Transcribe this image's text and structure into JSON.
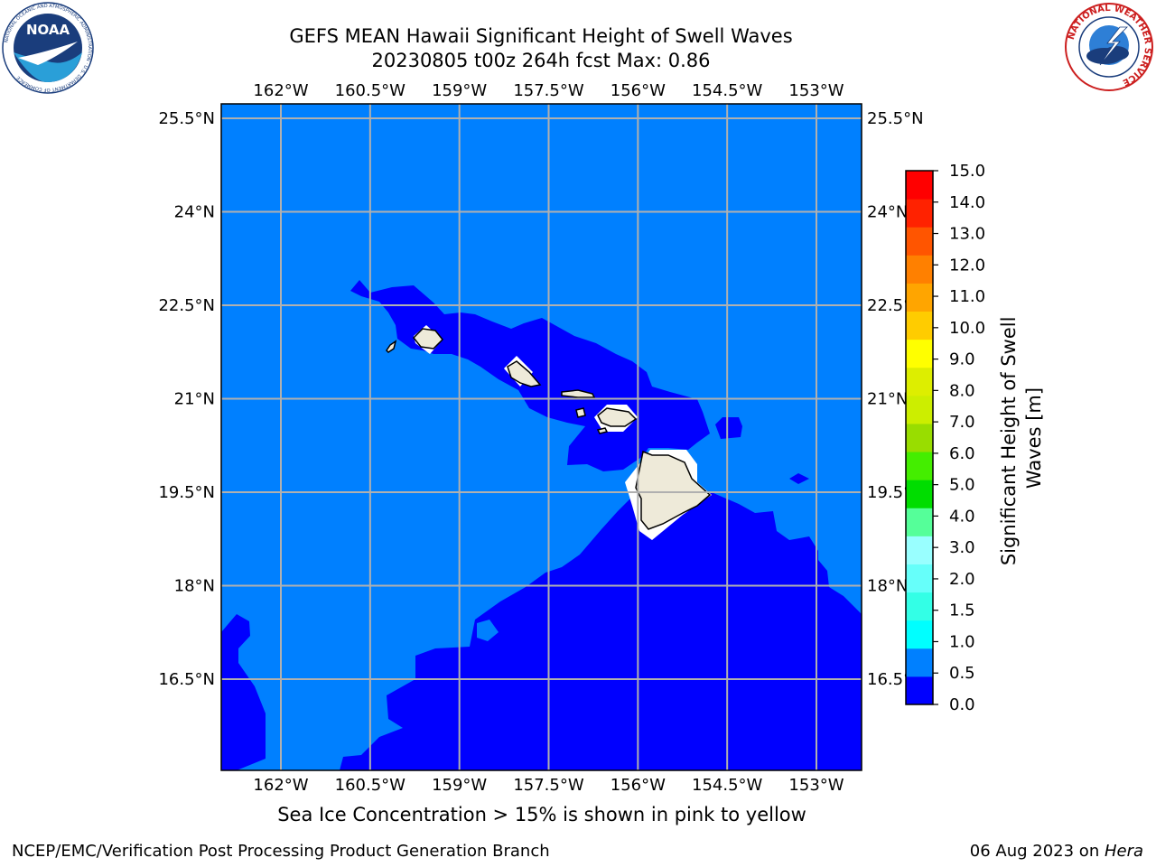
{
  "title_line1": "GEFS MEAN Hawaii Significant Height of Swell Waves",
  "title_line2": "20230805 t00z 264h fcst   Max: 0.86",
  "caption": "Sea Ice Concentration > 15% is shown in pink to yellow",
  "footer_left": "NCEP/EMC/Verification Post Processing Product Generation Branch",
  "footer_date": "06 Aug 2023 on ",
  "footer_machine": "Hera",
  "logos": {
    "left": {
      "name": "noaa-logo",
      "text": "NOAA",
      "ring_text": "NATIONAL OCEANIC AND ATMOSPHERIC ADMINISTRATION · U.S. DEPARTMENT OF COMMERCE"
    },
    "right": {
      "name": "nws-logo",
      "ring_text": "NATIONAL WEATHER SERVICE"
    }
  },
  "map": {
    "lon_labels": [
      "162°W",
      "160.5°W",
      "159°W",
      "157.5°W",
      "156°W",
      "154.5°W",
      "153°W"
    ],
    "lat_labels": [
      "25.5°N",
      "24°N",
      "22.5°N",
      "21°N",
      "19.5°N",
      "18°N",
      "16.5°N"
    ],
    "lon_values": [
      -162,
      -160.5,
      -159,
      -157.5,
      -156,
      -154.5,
      -153
    ],
    "lat_values": [
      25.5,
      24,
      22.5,
      21,
      19.5,
      18,
      16.5
    ],
    "grid": true,
    "colors": {
      "band_0_0.5": "#0000ff",
      "band_0.5_1.0": "#0080ff",
      "land": "#eeead9",
      "coastline": "#000000",
      "gridline": "#b0b0b0"
    }
  },
  "colorbar": {
    "label": "Significant Height of Swell Waves [m]",
    "ticks": [
      "0.0",
      "0.5",
      "1.0",
      "1.5",
      "2.0",
      "3.0",
      "4.0",
      "5.0",
      "6.0",
      "7.0",
      "8.0",
      "9.0",
      "10.0",
      "11.0",
      "12.0",
      "13.0",
      "14.0",
      "15.0"
    ],
    "colors": [
      "#0000ff",
      "#0080ff",
      "#00ffff",
      "#33ffe6",
      "#66fffa",
      "#99ffff",
      "#55ff99",
      "#00dd00",
      "#44ee00",
      "#99dd00",
      "#ccee00",
      "#ddee00",
      "#ffff00",
      "#ffcc00",
      "#ffa500",
      "#ff8000",
      "#ff5500",
      "#ff2200",
      "#ff0000"
    ]
  }
}
